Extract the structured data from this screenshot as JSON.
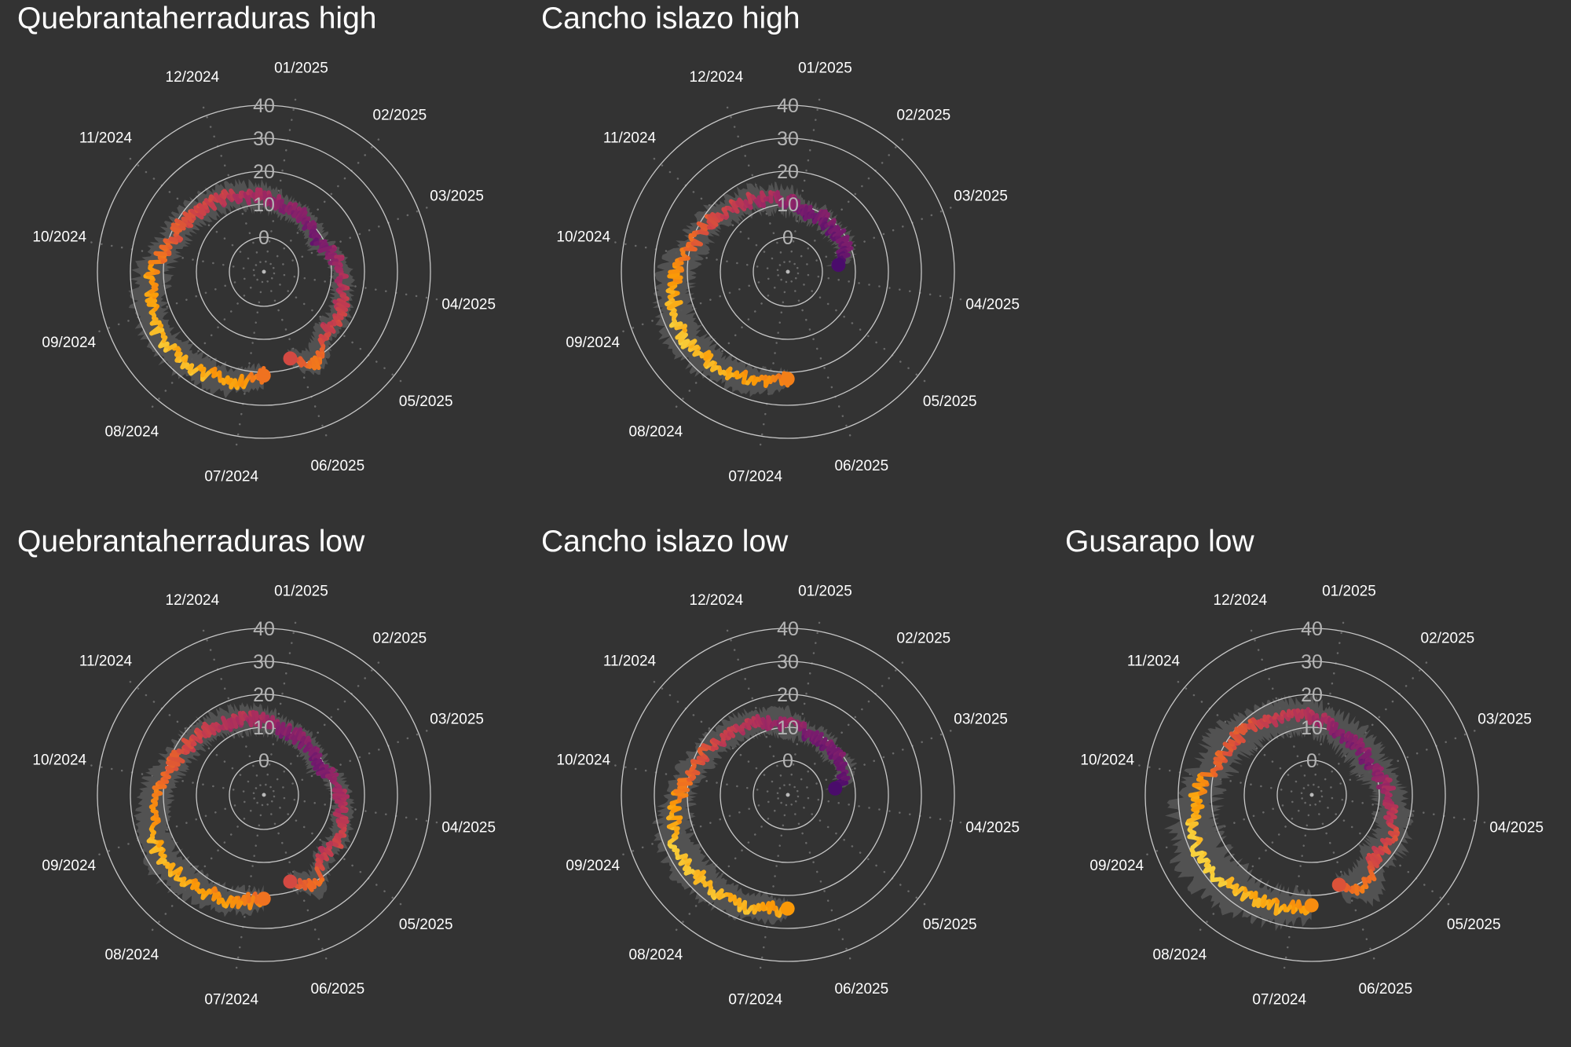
{
  "figure": {
    "background": "#333333",
    "text_color": "#ffffff",
    "ring_label_color": "#b4b4b4",
    "band_color": "#545454",
    "palette": [
      "#4a0c6b",
      "#781c6d",
      "#a52c60",
      "#cf4446",
      "#ed6925",
      "#fb9b06",
      "#f7d13d"
    ]
  },
  "chart_data": [
    {
      "type": "line",
      "title": "Quebrantaherraduras high",
      "radial_axis": {
        "ticks": [
          0,
          10,
          20,
          30,
          40
        ],
        "range": [
          0,
          40
        ]
      },
      "angular_ticks": [
        "07/2024",
        "08/2024",
        "09/2024",
        "10/2024",
        "11/2024",
        "12/2024",
        "01/2025",
        "02/2025",
        "03/2025",
        "04/2025",
        "05/2025",
        "06/2025"
      ],
      "x": [
        "2024-06-22",
        "2024-07-08",
        "2024-07-23",
        "2024-08-08",
        "2024-08-23",
        "2024-09-08",
        "2024-09-23",
        "2024-10-08",
        "2024-10-23",
        "2024-11-08",
        "2024-11-23",
        "2024-12-08",
        "2024-12-23",
        "2025-01-08",
        "2025-01-23",
        "2025-02-08",
        "2025-02-23",
        "2025-03-08",
        "2025-03-23",
        "2025-04-08",
        "2025-04-23",
        "2025-05-08",
        "2025-05-23",
        "2025-06-05"
      ],
      "values": [
        21,
        24,
        25,
        26,
        27,
        25,
        23,
        19,
        18,
        16,
        15,
        13,
        12,
        10,
        10,
        9,
        8,
        11,
        13,
        14,
        16,
        15,
        21,
        17
      ],
      "band_halfwidth": [
        3,
        4,
        4,
        5,
        5,
        5,
        5,
        4,
        4,
        4,
        4,
        4,
        4,
        3,
        3,
        3,
        3,
        3,
        3,
        3,
        3,
        3,
        4,
        3
      ],
      "markers": [
        {
          "x": "2024-06-22",
          "value": 21
        },
        {
          "x": "2025-06-05",
          "value": 17
        }
      ]
    },
    {
      "type": "line",
      "title": "Cancho islazo high",
      "radial_axis": {
        "ticks": [
          0,
          10,
          20,
          30,
          40
        ],
        "range": [
          0,
          40
        ]
      },
      "angular_ticks": [
        "07/2024",
        "08/2024",
        "09/2024",
        "10/2024",
        "11/2024",
        "12/2024",
        "01/2025",
        "02/2025",
        "03/2025",
        "04/2025",
        "05/2025",
        "06/2025"
      ],
      "x": [
        "2024-06-22",
        "2024-07-08",
        "2024-07-23",
        "2024-08-08",
        "2024-08-23",
        "2024-09-08",
        "2024-09-23",
        "2024-10-08",
        "2024-10-23",
        "2024-11-08",
        "2024-11-23",
        "2024-12-08",
        "2024-12-23",
        "2025-01-08",
        "2025-01-23",
        "2025-02-08",
        "2025-02-23",
        "2025-03-08",
        "2025-03-15"
      ],
      "values": [
        22,
        24,
        25,
        26,
        27,
        25,
        23,
        19,
        18,
        15,
        14,
        12,
        11,
        8,
        9,
        8,
        9,
        7,
        5
      ],
      "band_halfwidth": [
        3,
        4,
        4,
        5,
        5,
        5,
        5,
        4,
        4,
        4,
        4,
        4,
        4,
        3,
        3,
        3,
        3,
        3,
        3
      ],
      "markers": [
        {
          "x": "2024-06-22",
          "value": 22
        },
        {
          "x": "2025-03-15",
          "value": 5
        }
      ]
    },
    {
      "type": "line",
      "title": "Quebrantaherraduras low",
      "radial_axis": {
        "ticks": [
          0,
          10,
          20,
          30,
          40
        ],
        "range": [
          0,
          40
        ]
      },
      "angular_ticks": [
        "07/2024",
        "08/2024",
        "09/2024",
        "10/2024",
        "11/2024",
        "12/2024",
        "01/2025",
        "02/2025",
        "03/2025",
        "04/2025",
        "05/2025",
        "06/2025"
      ],
      "x": [
        "2024-06-22",
        "2024-07-08",
        "2024-07-23",
        "2024-08-08",
        "2024-08-23",
        "2024-09-08",
        "2024-09-23",
        "2024-10-08",
        "2024-10-23",
        "2024-11-08",
        "2024-11-23",
        "2024-12-08",
        "2024-12-23",
        "2025-01-08",
        "2025-01-23",
        "2025-02-08",
        "2025-02-23",
        "2025-03-08",
        "2025-03-23",
        "2025-04-08",
        "2025-04-23",
        "2025-05-08",
        "2025-05-23",
        "2025-06-05"
      ],
      "values": [
        21,
        23,
        24,
        25,
        26,
        24,
        22,
        19,
        17,
        16,
        14,
        13,
        12,
        10,
        10,
        9,
        8,
        11,
        13,
        14,
        16,
        15,
        21,
        17
      ],
      "band_halfwidth": [
        3,
        4,
        4,
        5,
        5,
        5,
        5,
        4,
        4,
        4,
        4,
        4,
        4,
        3,
        3,
        3,
        3,
        3,
        3,
        3,
        3,
        3,
        4,
        3
      ],
      "markers": [
        {
          "x": "2024-06-22",
          "value": 21
        },
        {
          "x": "2025-06-05",
          "value": 17
        }
      ]
    },
    {
      "type": "line",
      "title": "Cancho islazo low",
      "radial_axis": {
        "ticks": [
          0,
          10,
          20,
          30,
          40
        ],
        "range": [
          0,
          40
        ]
      },
      "angular_ticks": [
        "07/2024",
        "08/2024",
        "09/2024",
        "10/2024",
        "11/2024",
        "12/2024",
        "01/2025",
        "02/2025",
        "03/2025",
        "04/2025",
        "05/2025",
        "06/2025"
      ],
      "x": [
        "2024-06-22",
        "2024-07-08",
        "2024-07-23",
        "2024-08-08",
        "2024-08-23",
        "2024-09-08",
        "2024-09-23",
        "2024-10-08",
        "2024-10-23",
        "2024-11-08",
        "2024-11-23",
        "2024-12-08",
        "2024-12-23",
        "2025-01-08",
        "2025-01-23",
        "2025-02-08",
        "2025-02-23",
        "2025-03-08",
        "2025-03-15"
      ],
      "values": [
        24,
        25,
        26,
        26,
        27,
        25,
        22,
        19,
        17,
        15,
        14,
        12,
        11,
        9,
        9,
        8,
        9,
        7,
        4
      ],
      "band_halfwidth": [
        3,
        4,
        4,
        5,
        5,
        5,
        4,
        4,
        4,
        4,
        4,
        4,
        4,
        3,
        3,
        3,
        3,
        3,
        3
      ],
      "markers": [
        {
          "x": "2024-06-22",
          "value": 24
        },
        {
          "x": "2025-03-15",
          "value": 4
        }
      ]
    },
    {
      "type": "line",
      "title": "Gusarapo low",
      "radial_axis": {
        "ticks": [
          0,
          10,
          20,
          30,
          40
        ],
        "range": [
          0,
          40
        ]
      },
      "angular_ticks": [
        "07/2024",
        "08/2024",
        "09/2024",
        "10/2024",
        "11/2024",
        "12/2024",
        "01/2025",
        "02/2025",
        "03/2025",
        "04/2025",
        "05/2025",
        "06/2025"
      ],
      "x": [
        "2024-06-22",
        "2024-07-08",
        "2024-07-23",
        "2024-08-08",
        "2024-08-23",
        "2024-09-08",
        "2024-09-23",
        "2024-10-08",
        "2024-10-23",
        "2024-11-08",
        "2024-11-23",
        "2024-12-08",
        "2024-12-23",
        "2025-01-08",
        "2025-01-23",
        "2025-02-08",
        "2025-02-23",
        "2025-03-08",
        "2025-03-23",
        "2025-04-08",
        "2025-04-23",
        "2025-05-08",
        "2025-05-23",
        "2025-06-05"
      ],
      "values": [
        23,
        25,
        26,
        27,
        28,
        26,
        24,
        20,
        19,
        17,
        15,
        14,
        13,
        11,
        10,
        10,
        9,
        11,
        13,
        15,
        17,
        16,
        22,
        18
      ],
      "band_halfwidth": [
        4,
        6,
        6,
        7,
        7,
        7,
        6,
        6,
        6,
        5,
        5,
        5,
        5,
        5,
        5,
        5,
        5,
        5,
        5,
        5,
        5,
        5,
        6,
        4
      ],
      "markers": [
        {
          "x": "2024-06-22",
          "value": 23
        },
        {
          "x": "2025-06-05",
          "value": 18
        }
      ]
    }
  ]
}
